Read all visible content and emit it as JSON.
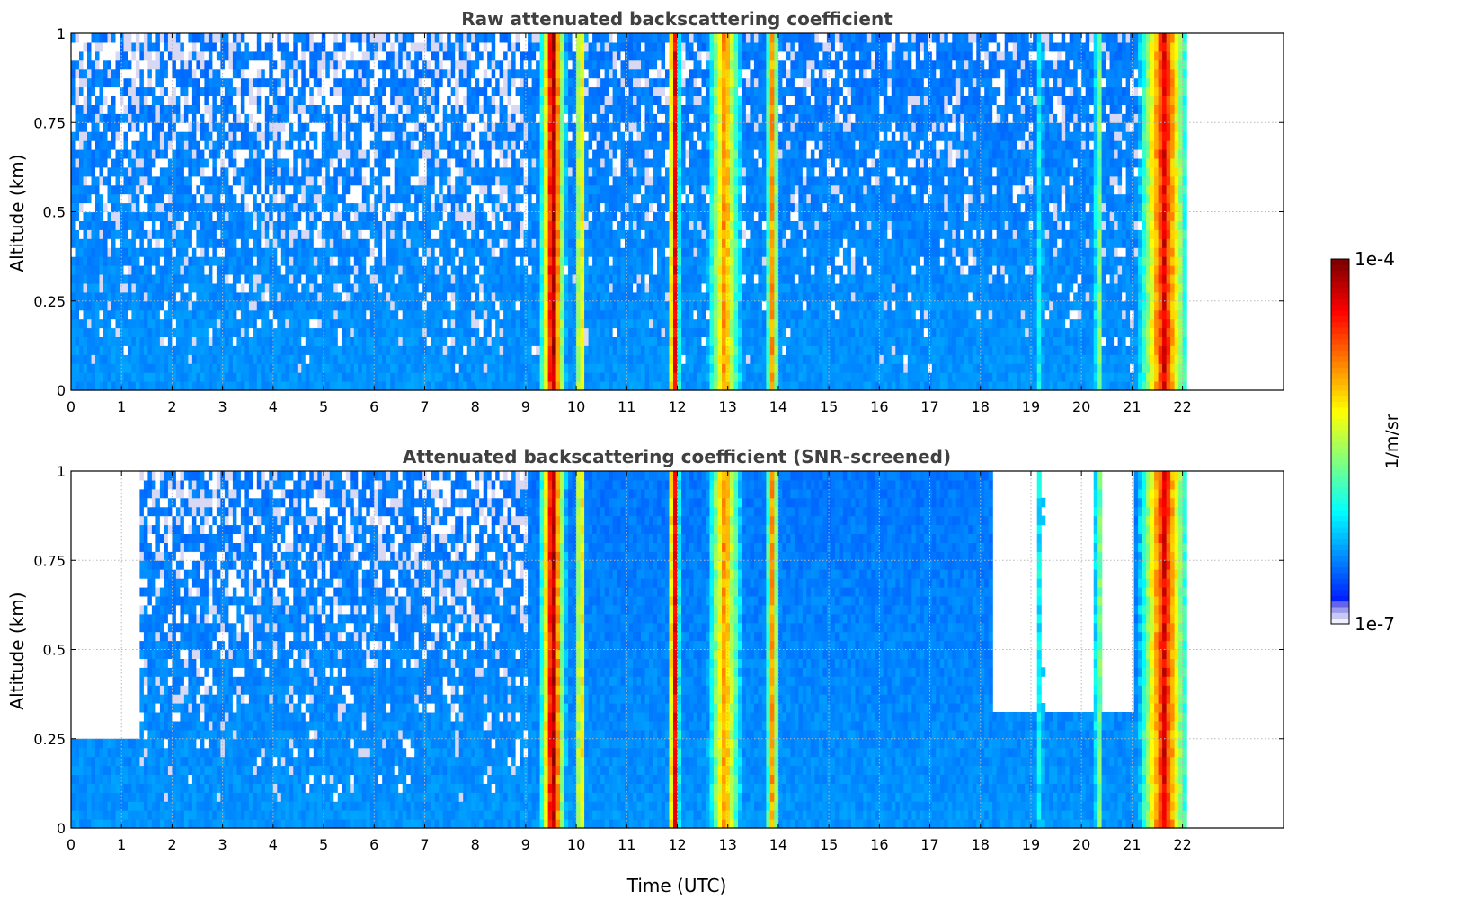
{
  "chart_data": [
    {
      "type": "heatmap",
      "title": "Raw attenuated backscattering coefficient",
      "xlabel": "",
      "ylabel": "Altitude (km)",
      "xlim": [
        0,
        24
      ],
      "ylim": [
        0,
        1
      ],
      "x_ticks": [
        "0",
        "1",
        "2",
        "3",
        "4",
        "5",
        "6",
        "7",
        "8",
        "9",
        "10",
        "11",
        "12",
        "13",
        "14",
        "15",
        "16",
        "17",
        "18",
        "19",
        "20",
        "21",
        "22"
      ],
      "y_ticks": [
        "0",
        "0.25",
        "0.5",
        "0.75",
        "1"
      ],
      "grid": true,
      "data_end_time": 22,
      "features": [
        {
          "kind": "cloud",
          "time": 9.5,
          "width": 0.35,
          "peak": 0.95
        },
        {
          "kind": "cloud",
          "time": 10.05,
          "width": 0.15,
          "peak": 0.72
        },
        {
          "kind": "cloud",
          "time": 11.9,
          "width": 0.15,
          "peak": 0.97
        },
        {
          "kind": "cloud",
          "time": 12.9,
          "width": 0.5,
          "peak": 0.7
        },
        {
          "kind": "cloud",
          "time": 13.85,
          "width": 0.2,
          "peak": 0.7
        },
        {
          "kind": "cloud",
          "time": 19.15,
          "width": 0.1,
          "peak": 0.45
        },
        {
          "kind": "cloud",
          "time": 20.3,
          "width": 0.15,
          "peak": 0.5
        },
        {
          "kind": "cloud",
          "time": 21.6,
          "width": 0.7,
          "peak": 0.85
        }
      ]
    },
    {
      "type": "heatmap",
      "title": "Attenuated backscattering coefficient (SNR-screened)",
      "xlabel": "Time (UTC)",
      "ylabel": "Altitude (km)",
      "xlim": [
        0,
        24
      ],
      "ylim": [
        0,
        1
      ],
      "x_ticks": [
        "0",
        "1",
        "2",
        "3",
        "4",
        "5",
        "6",
        "7",
        "8",
        "9",
        "10",
        "11",
        "12",
        "13",
        "14",
        "15",
        "16",
        "17",
        "18",
        "19",
        "20",
        "21",
        "22"
      ],
      "y_ticks": [
        "0",
        "0.25",
        "0.5",
        "0.75",
        "1"
      ],
      "grid": true,
      "data_end_time": 22,
      "screened_ceiling_km": [
        {
          "from": 0,
          "to": 1.3,
          "altitude": 0.25
        },
        {
          "from": 18.2,
          "to": 21,
          "altitude": 0.33
        }
      ]
    }
  ],
  "colorbar": {
    "label": "1/m/sr",
    "max_label": "1e-4",
    "min_label": "1e-7",
    "colormap": "jet"
  }
}
